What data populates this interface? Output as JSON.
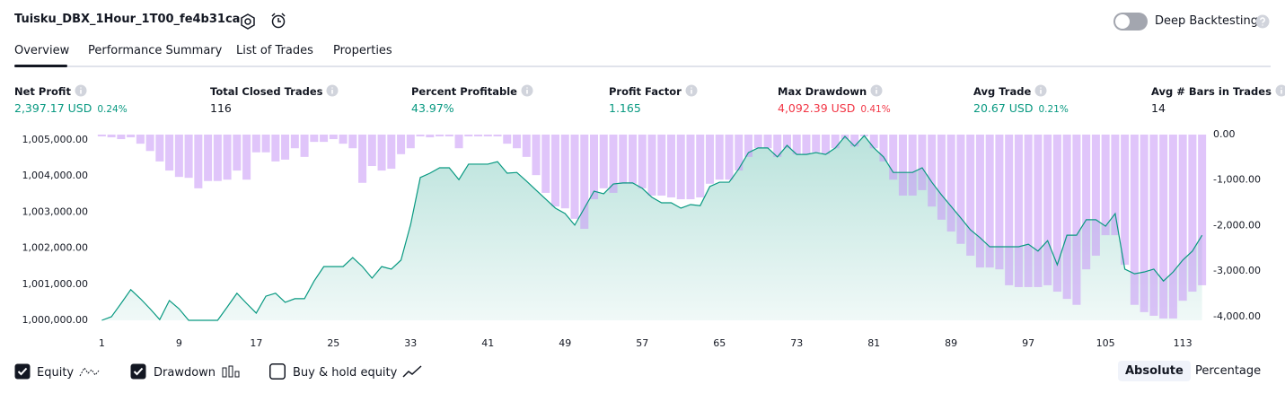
{
  "header": {
    "title": "Tuisku_DBX_1Hour_1T00_fe4b31ca",
    "toggle_label": "Deep Backtesting",
    "toggle_on": false
  },
  "tabs": [
    "Overview",
    "Performance Summary",
    "List of Trades",
    "Properties"
  ],
  "metrics": [
    {
      "label": "Net Profit",
      "value": "2,397.17 USD",
      "percent": "0.24%"
    },
    {
      "label": "Total Closed Trades",
      "value": "116"
    },
    {
      "label": "Percent Profitable",
      "value": "43.97%"
    },
    {
      "label": "Profit Factor",
      "value": "1.165"
    },
    {
      "label": "Max Drawdown",
      "value": "4,092.39 USD",
      "percent": "0.41%"
    },
    {
      "label": "Avg Trade",
      "value": "20.67 USD",
      "percent": "0.21%"
    },
    {
      "label": "Avg # Bars in Trades",
      "value": "14"
    }
  ],
  "chart_data": {
    "type": "line",
    "x": [
      1,
      2,
      3,
      4,
      5,
      6,
      7,
      8,
      9,
      10,
      11,
      12,
      13,
      14,
      15,
      16,
      17,
      18,
      19,
      20,
      21,
      22,
      23,
      24,
      25,
      26,
      27,
      28,
      29,
      30,
      31,
      32,
      33,
      34,
      35,
      36,
      37,
      38,
      39,
      40,
      41,
      42,
      43,
      44,
      45,
      46,
      47,
      48,
      49,
      50,
      51,
      52,
      53,
      54,
      55,
      56,
      57,
      58,
      59,
      60,
      61,
      62,
      63,
      64,
      65,
      66,
      67,
      68,
      69,
      70,
      71,
      72,
      73,
      74,
      75,
      76,
      77,
      78,
      79,
      80,
      81,
      82,
      83,
      84,
      85,
      86,
      87,
      88,
      89,
      90,
      91,
      92,
      93,
      94,
      95,
      96,
      97,
      98,
      99,
      100,
      101,
      102,
      103,
      104,
      105,
      106,
      107,
      108,
      109,
      110,
      111,
      112,
      113,
      114,
      115
    ],
    "xlim": [
      0.5,
      115.5
    ],
    "xticks": [
      1,
      9,
      17,
      25,
      33,
      41,
      49,
      57,
      65,
      73,
      81,
      89,
      97,
      105,
      113
    ],
    "ylim": [
      1000000,
      1005150
    ],
    "yticks": [
      {
        "value": 1000000,
        "label": "1,000,000.00"
      },
      {
        "value": 1001000,
        "label": "1,001,000.00"
      },
      {
        "value": 1002000,
        "label": "1,002,000.00"
      },
      {
        "value": 1003000,
        "label": "1,003,000.00"
      },
      {
        "value": 1004000,
        "label": "1,004,000.00"
      },
      {
        "value": 1005000,
        "label": "1,005,000.00"
      }
    ],
    "y2lim": [
      -4100,
      0
    ],
    "y2ticks": [
      {
        "value": 0,
        "label": "0.00"
      },
      {
        "value": -1000,
        "label": "-1,000.00"
      },
      {
        "value": -2000,
        "label": "-2,000.00"
      },
      {
        "value": -3000,
        "label": "-3,000.00"
      },
      {
        "value": -4000,
        "label": "-4,000.00"
      }
    ],
    "series": [
      {
        "name": "Equity",
        "type": "area",
        "color": "#089981",
        "values": [
          1000000,
          1000100,
          1000470,
          1000850,
          1000600,
          1000320,
          1000020,
          1000550,
          1000320,
          1000000,
          1000000,
          1000000,
          1000000,
          1000370,
          1000750,
          1000470,
          1000200,
          1000670,
          1000750,
          1000500,
          1000600,
          1000600,
          1001090,
          1001490,
          1001490,
          1001490,
          1001740,
          1001490,
          1001170,
          1001490,
          1001420,
          1001670,
          1002660,
          1003960,
          1004080,
          1004230,
          1004230,
          1003900,
          1004330,
          1004330,
          1004330,
          1004400,
          1004080,
          1004100,
          1003860,
          1003610,
          1003360,
          1003110,
          1002960,
          1002640,
          1003110,
          1003580,
          1003510,
          1003780,
          1003810,
          1003810,
          1003660,
          1003410,
          1003260,
          1003260,
          1003110,
          1003210,
          1003180,
          1003710,
          1003830,
          1003830,
          1004200,
          1004650,
          1004780,
          1004780,
          1004530,
          1004850,
          1004600,
          1004600,
          1004650,
          1004600,
          1004780,
          1005100,
          1004830,
          1005120,
          1004780,
          1004530,
          1004100,
          1004100,
          1004100,
          1004230,
          1003830,
          1003480,
          1003160,
          1002840,
          1002510,
          1002290,
          1002040,
          1002040,
          1002040,
          1002040,
          1002110,
          1001920,
          1002210,
          1001540,
          1002360,
          1002360,
          1002790,
          1002790,
          1002610,
          1002960,
          1001420,
          1001290,
          1001340,
          1001420,
          1001090,
          1001340,
          1001670,
          1001920,
          1002360
        ]
      },
      {
        "name": "Drawdown",
        "type": "bar",
        "axis": "y2",
        "color": "#c795f5",
        "values": [
          -40,
          -60,
          -100,
          -60,
          -200,
          -360,
          -590,
          -790,
          -930,
          -950,
          -1180,
          -1020,
          -1020,
          -990,
          -790,
          -990,
          -390,
          -390,
          -590,
          -550,
          -300,
          -490,
          -160,
          -160,
          -100,
          -200,
          -300,
          -1060,
          -690,
          -790,
          -750,
          -430,
          -300,
          -40,
          -60,
          -40,
          -40,
          -300,
          -40,
          -40,
          -40,
          -40,
          -200,
          -300,
          -490,
          -890,
          -1280,
          -1580,
          -1620,
          -1850,
          -2070,
          -1420,
          -1180,
          -1280,
          -1080,
          -1080,
          -1180,
          -1340,
          -1340,
          -1380,
          -1420,
          -1420,
          -1380,
          -1080,
          -990,
          -990,
          -790,
          -490,
          -300,
          -300,
          -490,
          -300,
          -430,
          -430,
          -390,
          -430,
          -300,
          -100,
          -260,
          -40,
          -300,
          -590,
          -990,
          -1340,
          -1340,
          -1220,
          -1580,
          -1870,
          -2130,
          -2400,
          -2660,
          -2920,
          -2920,
          -2960,
          -3310,
          -3350,
          -3350,
          -3350,
          -3310,
          -3450,
          -3610,
          -3740,
          -2960,
          -2660,
          -2210,
          -2210,
          -2860,
          -3740,
          -3900,
          -3980,
          -4040,
          -4040,
          -3650,
          -3450,
          -3310
        ]
      }
    ]
  },
  "legend_items": [
    {
      "label": "Equity",
      "checked": true
    },
    {
      "label": "Drawdown",
      "checked": true
    },
    {
      "label": "Buy & hold equity",
      "checked": false
    }
  ],
  "scale_buttons": [
    "Absolute",
    "Percentage"
  ]
}
